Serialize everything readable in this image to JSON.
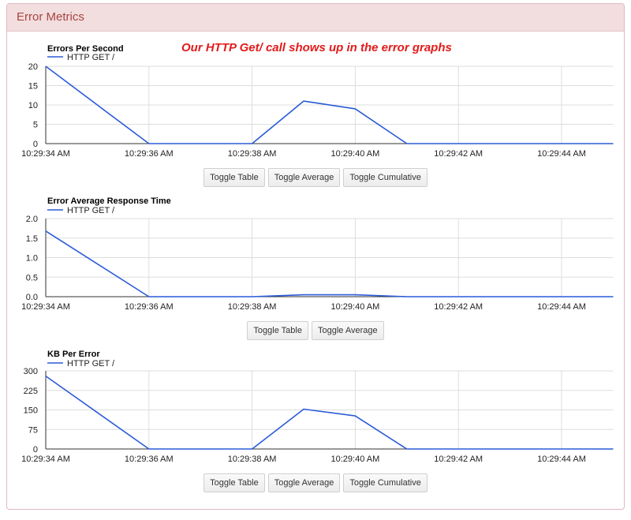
{
  "panel": {
    "title": "Error Metrics"
  },
  "annotation": "Our HTTP Get/ call shows up in the error graphs",
  "colors": {
    "line": "#2a5bd7",
    "grid": "#dddddd",
    "header_bg": "#f2dede",
    "header_text": "#a94442",
    "annotation": "#e31b1b"
  },
  "chart_data": [
    {
      "type": "line",
      "title": "Errors Per Second",
      "x": [
        "10:29:34 AM",
        "10:29:35 AM",
        "10:29:36 AM",
        "10:29:37 AM",
        "10:29:38 AM",
        "10:29:39 AM",
        "10:29:40 AM",
        "10:29:41 AM",
        "10:29:42 AM",
        "10:29:43 AM",
        "10:29:44 AM",
        "10:29:45 AM"
      ],
      "x_ticks": [
        "10:29:34 AM",
        "10:29:36 AM",
        "10:29:38 AM",
        "10:29:40 AM",
        "10:29:42 AM",
        "10:29:44 AM"
      ],
      "series": [
        {
          "name": "HTTP GET /",
          "values": [
            20,
            10,
            0,
            0,
            0,
            11,
            9,
            0,
            0,
            0,
            0,
            0
          ]
        }
      ],
      "y_ticks": [
        "0",
        "5",
        "10",
        "15",
        "20"
      ],
      "ylim": [
        0,
        20
      ],
      "legend": "top-left",
      "grid": true,
      "buttons": [
        "Toggle Table",
        "Toggle Average",
        "Toggle Cumulative"
      ]
    },
    {
      "type": "line",
      "title": "Error Average Response Time",
      "x": [
        "10:29:34 AM",
        "10:29:35 AM",
        "10:29:36 AM",
        "10:29:37 AM",
        "10:29:38 AM",
        "10:29:39 AM",
        "10:29:40 AM",
        "10:29:41 AM",
        "10:29:42 AM",
        "10:29:43 AM",
        "10:29:44 AM",
        "10:29:45 AM"
      ],
      "x_ticks": [
        "10:29:34 AM",
        "10:29:36 AM",
        "10:29:38 AM",
        "10:29:40 AM",
        "10:29:42 AM",
        "10:29:44 AM"
      ],
      "series": [
        {
          "name": "HTTP GET /",
          "values": [
            1.68,
            0.84,
            0,
            0,
            0,
            0.05,
            0.05,
            0,
            0,
            0,
            0,
            0
          ]
        }
      ],
      "y_ticks": [
        "0.0",
        "0.5",
        "1.0",
        "1.5",
        "2.0"
      ],
      "ylim": [
        0,
        2
      ],
      "legend": "top-left",
      "grid": true,
      "buttons": [
        "Toggle Table",
        "Toggle Average"
      ]
    },
    {
      "type": "line",
      "title": "KB Per Error",
      "x": [
        "10:29:34 AM",
        "10:29:35 AM",
        "10:29:36 AM",
        "10:29:37 AM",
        "10:29:38 AM",
        "10:29:39 AM",
        "10:29:40 AM",
        "10:29:41 AM",
        "10:29:42 AM",
        "10:29:43 AM",
        "10:29:44 AM",
        "10:29:45 AM"
      ],
      "x_ticks": [
        "10:29:34 AM",
        "10:29:36 AM",
        "10:29:38 AM",
        "10:29:40 AM",
        "10:29:42 AM",
        "10:29:44 AM"
      ],
      "series": [
        {
          "name": "HTTP GET /",
          "values": [
            280,
            140,
            0,
            0,
            0,
            153,
            127,
            0,
            0,
            0,
            0,
            0
          ]
        }
      ],
      "y_ticks": [
        "0",
        "75",
        "150",
        "225",
        "300"
      ],
      "ylim": [
        0,
        300
      ],
      "legend": "top-left",
      "grid": true,
      "buttons": [
        "Toggle Table",
        "Toggle Average",
        "Toggle Cumulative"
      ]
    }
  ]
}
